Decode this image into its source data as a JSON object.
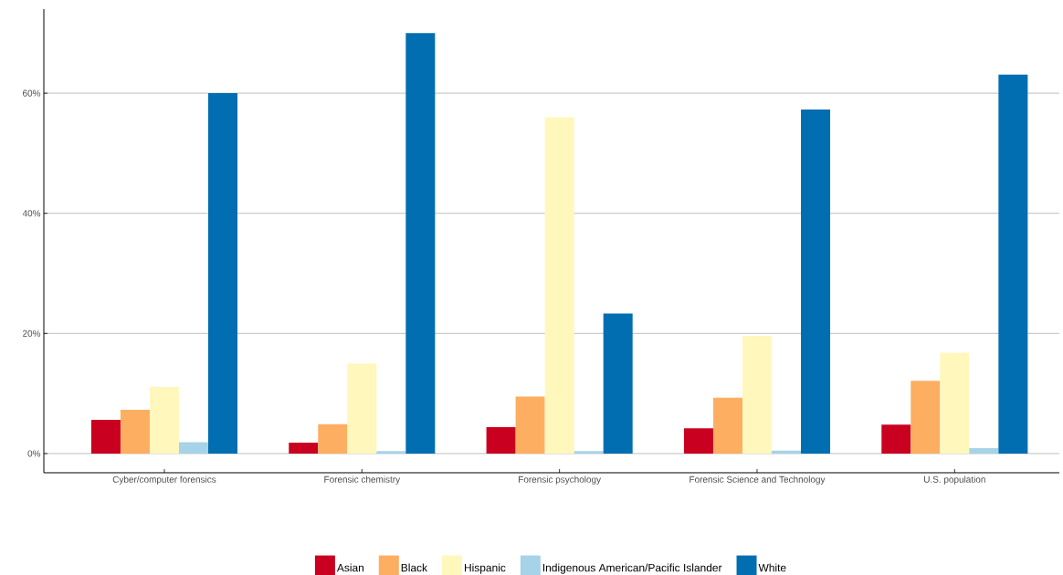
{
  "chart_data": {
    "type": "bar",
    "categories": [
      "Cyber/computer forensics",
      "Forensic chemistry",
      "Forensic psychology",
      "Forensic Science and Technology",
      "U.S. population"
    ],
    "series": [
      {
        "name": "Asian",
        "color": "#ca0020",
        "values": [
          5.6,
          1.8,
          4.4,
          4.2,
          4.8
        ]
      },
      {
        "name": "Black",
        "color": "#fdae61",
        "values": [
          7.3,
          4.9,
          9.5,
          9.3,
          12.1
        ]
      },
      {
        "name": "Hispanic",
        "color": "#fff7bc",
        "values": [
          11.1,
          15.0,
          56.0,
          19.6,
          16.8
        ]
      },
      {
        "name": "Indigenous American/Pacific Islander",
        "color": "#a6d3e8",
        "values": [
          1.9,
          0.4,
          0.4,
          0.5,
          0.9
        ]
      },
      {
        "name": "White",
        "color": "#006eb0",
        "values": [
          60.0,
          70.0,
          23.3,
          57.3,
          63.1
        ]
      }
    ],
    "ylim": [
      -3.2,
      74
    ],
    "yticks": [
      {
        "value": 0,
        "label": "0%"
      },
      {
        "value": 20,
        "label": "20%"
      },
      {
        "value": 40,
        "label": "40%"
      },
      {
        "value": 60,
        "label": "60%"
      }
    ],
    "grid": "y",
    "legend": "bottom"
  }
}
